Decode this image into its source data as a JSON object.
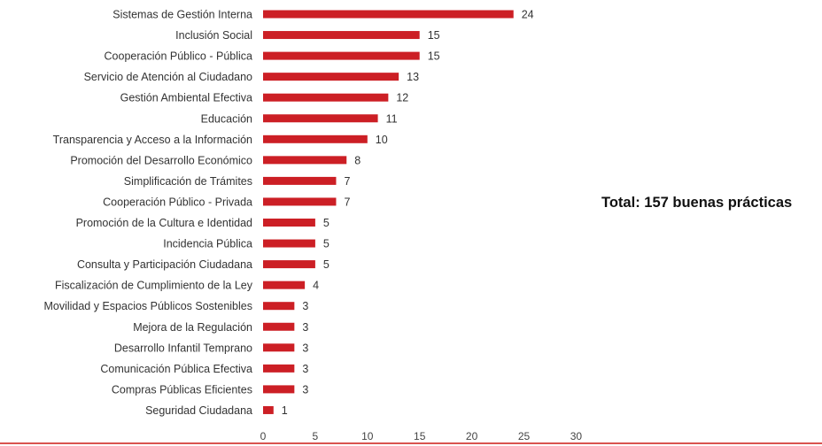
{
  "chart_data": {
    "type": "bar",
    "orientation": "horizontal",
    "categories": [
      "Sistemas de Gestión Interna",
      "Inclusión Social",
      "Cooperación Público - Pública",
      "Servicio de Atención al Ciudadano",
      "Gestión Ambiental Efectiva",
      "Educación",
      "Transparencia y Acceso a la Información",
      "Promoción del Desarrollo Económico",
      "Simplificación de Trámites",
      "Cooperación Público - Privada",
      "Promoción de la Cultura e Identidad",
      "Incidencia Pública",
      "Consulta y Participación Ciudadana",
      "Fiscalización de Cumplimiento de la Ley",
      "Movilidad y Espacios Públicos Sostenibles",
      "Mejora de la Regulación",
      "Desarrollo Infantil Temprano",
      "Comunicación Pública Efectiva",
      "Compras Públicas Eficientes",
      "Seguridad Ciudadana"
    ],
    "values": [
      24,
      15,
      15,
      13,
      12,
      11,
      10,
      8,
      7,
      7,
      5,
      5,
      5,
      4,
      3,
      3,
      3,
      3,
      3,
      1
    ],
    "data_labels": true,
    "xlim": [
      0,
      30
    ],
    "xticks": [
      0,
      5,
      10,
      15,
      20,
      25,
      30
    ],
    "grid": false,
    "bar_color": "#cc1f25"
  },
  "annotation": {
    "total_text": "Total: 157 buenas prácticas"
  }
}
